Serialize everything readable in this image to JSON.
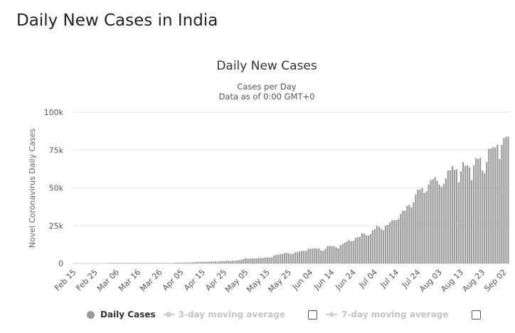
{
  "page_title": "Daily New Cases in India",
  "legend": {
    "daily_cases": "Daily Cases",
    "ma3": "3-day moving average",
    "ma7": "7-day moving average"
  },
  "colors": {
    "bar": "#999999",
    "grid": "#e6e6e6",
    "legend_muted": "#cccccc"
  },
  "chart_data": {
    "type": "bar",
    "title": "Daily New Cases",
    "subtitle": [
      "Cases per Day",
      "Data as of 0:00 GMT+0"
    ],
    "ylabel": "Novel Coronavirus Daily Cases",
    "xlabel": "",
    "ylim": [
      0,
      100000
    ],
    "yticks": [
      0,
      25000,
      50000,
      75000,
      100000
    ],
    "ytick_labels": [
      "0",
      "25k",
      "50k",
      "75k",
      "100k"
    ],
    "xtick_labels": [
      "Feb 15",
      "Feb 25",
      "Mar 06",
      "Mar 16",
      "Mar 26",
      "Apr 05",
      "Apr 15",
      "Apr 25",
      "May 05",
      "May 15",
      "May 25",
      "Jun 04",
      "Jun 14",
      "Jun 24",
      "Jul 04",
      "Jul 14",
      "Jul 24",
      "Aug 03",
      "Aug 13",
      "Aug 23",
      "Sep 02"
    ],
    "grid": true,
    "legend_position": "bottom",
    "categories": [
      "Feb 15",
      "Feb 16",
      "Feb 17",
      "Feb 18",
      "Feb 19",
      "Feb 20",
      "Feb 21",
      "Feb 22",
      "Feb 23",
      "Feb 24",
      "Feb 25",
      "Feb 26",
      "Feb 27",
      "Feb 28",
      "Feb 29",
      "Mar 01",
      "Mar 02",
      "Mar 03",
      "Mar 04",
      "Mar 05",
      "Mar 06",
      "Mar 07",
      "Mar 08",
      "Mar 09",
      "Mar 10",
      "Mar 11",
      "Mar 12",
      "Mar 13",
      "Mar 14",
      "Mar 15",
      "Mar 16",
      "Mar 17",
      "Mar 18",
      "Mar 19",
      "Mar 20",
      "Mar 21",
      "Mar 22",
      "Mar 23",
      "Mar 24",
      "Mar 25",
      "Mar 26",
      "Mar 27",
      "Mar 28",
      "Mar 29",
      "Mar 30",
      "Mar 31",
      "Apr 01",
      "Apr 02",
      "Apr 03",
      "Apr 04",
      "Apr 05",
      "Apr 06",
      "Apr 07",
      "Apr 08",
      "Apr 09",
      "Apr 10",
      "Apr 11",
      "Apr 12",
      "Apr 13",
      "Apr 14",
      "Apr 15",
      "Apr 16",
      "Apr 17",
      "Apr 18",
      "Apr 19",
      "Apr 20",
      "Apr 21",
      "Apr 22",
      "Apr 23",
      "Apr 24",
      "Apr 25",
      "Apr 26",
      "Apr 27",
      "Apr 28",
      "Apr 29",
      "Apr 30",
      "May 01",
      "May 02",
      "May 03",
      "May 04",
      "May 05",
      "May 06",
      "May 07",
      "May 08",
      "May 09",
      "May 10",
      "May 11",
      "May 12",
      "May 13",
      "May 14",
      "May 15",
      "May 16",
      "May 17",
      "May 18",
      "May 19",
      "May 20",
      "May 21",
      "May 22",
      "May 23",
      "May 24",
      "May 25",
      "May 26",
      "May 27",
      "May 28",
      "May 29",
      "May 30",
      "May 31",
      "Jun 01",
      "Jun 02",
      "Jun 03",
      "Jun 04",
      "Jun 05",
      "Jun 06",
      "Jun 07",
      "Jun 08",
      "Jun 09",
      "Jun 10",
      "Jun 11",
      "Jun 12",
      "Jun 13",
      "Jun 14",
      "Jun 15",
      "Jun 16",
      "Jun 17",
      "Jun 18",
      "Jun 19",
      "Jun 20",
      "Jun 21",
      "Jun 22",
      "Jun 23",
      "Jun 24",
      "Jun 25",
      "Jun 26",
      "Jun 27",
      "Jun 28",
      "Jun 29",
      "Jun 30",
      "Jul 01",
      "Jul 02",
      "Jul 03",
      "Jul 04",
      "Jul 05",
      "Jul 06",
      "Jul 07",
      "Jul 08",
      "Jul 09",
      "Jul 10",
      "Jul 11",
      "Jul 12",
      "Jul 13",
      "Jul 14",
      "Jul 15",
      "Jul 16",
      "Jul 17",
      "Jul 18",
      "Jul 19",
      "Jul 20",
      "Jul 21",
      "Jul 22",
      "Jul 23",
      "Jul 24",
      "Jul 25",
      "Jul 26",
      "Jul 27",
      "Jul 28",
      "Jul 29",
      "Jul 30",
      "Jul 31",
      "Aug 01",
      "Aug 02",
      "Aug 03",
      "Aug 04",
      "Aug 05",
      "Aug 06",
      "Aug 07",
      "Aug 08",
      "Aug 09",
      "Aug 10",
      "Aug 11",
      "Aug 12",
      "Aug 13",
      "Aug 14",
      "Aug 15",
      "Aug 16",
      "Aug 17",
      "Aug 18",
      "Aug 19",
      "Aug 20",
      "Aug 21",
      "Aug 22",
      "Aug 23",
      "Aug 24",
      "Aug 25",
      "Aug 26",
      "Aug 27",
      "Aug 28",
      "Aug 29",
      "Aug 30",
      "Aug 31",
      "Sep 01",
      "Sep 02",
      "Sep 03",
      "Sep 04"
    ],
    "series": [
      {
        "name": "Daily Cases",
        "values": [
          0,
          0,
          0,
          0,
          0,
          0,
          0,
          0,
          0,
          0,
          0,
          0,
          0,
          0,
          0,
          0,
          2,
          1,
          22,
          2,
          1,
          3,
          5,
          4,
          15,
          12,
          14,
          11,
          20,
          26,
          26,
          14,
          20,
          34,
          62,
          80,
          90,
          90,
          102,
          55,
          69,
          148,
          180,
          120,
          150,
          210,
          220,
          450,
          400,
          500,
          510,
          580,
          570,
          540,
          550,
          700,
          800,
          850,
          910,
          980,
          1200,
          1100,
          1000,
          1200,
          1300,
          1100,
          1300,
          1200,
          1400,
          1600,
          1500,
          1700,
          1700,
          1500,
          1800,
          1800,
          2000,
          2200,
          2500,
          3000,
          3500,
          3100,
          3300,
          3300,
          3400,
          3300,
          3600,
          3600,
          3500,
          3900,
          3900,
          3900,
          3900,
          5200,
          5600,
          5700,
          6000,
          6300,
          6800,
          6900,
          6700,
          6200,
          6400,
          7300,
          7500,
          7900,
          8300,
          8400,
          8200,
          9600,
          9700,
          9800,
          9900,
          9800,
          9900,
          8500,
          8200,
          9600,
          11400,
          11700,
          11500,
          11400,
          10600,
          10000,
          12000,
          12800,
          13700,
          14500,
          15400,
          14700,
          14900,
          16800,
          17300,
          17600,
          19900,
          19800,
          18600,
          18400,
          19400,
          21900,
          22700,
          24800,
          24200,
          22800,
          22000,
          24900,
          25500,
          27100,
          28500,
          28700,
          28600,
          29400,
          32700,
          34900,
          34800,
          38000,
          38700,
          37100,
          40400,
          45700,
          48900,
          48700,
          49900,
          46600,
          47700,
          52100,
          55100,
          55700,
          57100,
          54700,
          52000,
          50600,
          52500,
          56200,
          61500,
          61600,
          64400,
          62000,
          62100,
          53600,
          60900,
          66900,
          64500,
          65000,
          63500,
          55100,
          65000,
          69600,
          68900,
          69900,
          61400,
          59700,
          67000,
          75800,
          76000,
          77000,
          76500,
          78500,
          69000,
          78400,
          82900,
          83800,
          83800
        ]
      }
    ]
  }
}
